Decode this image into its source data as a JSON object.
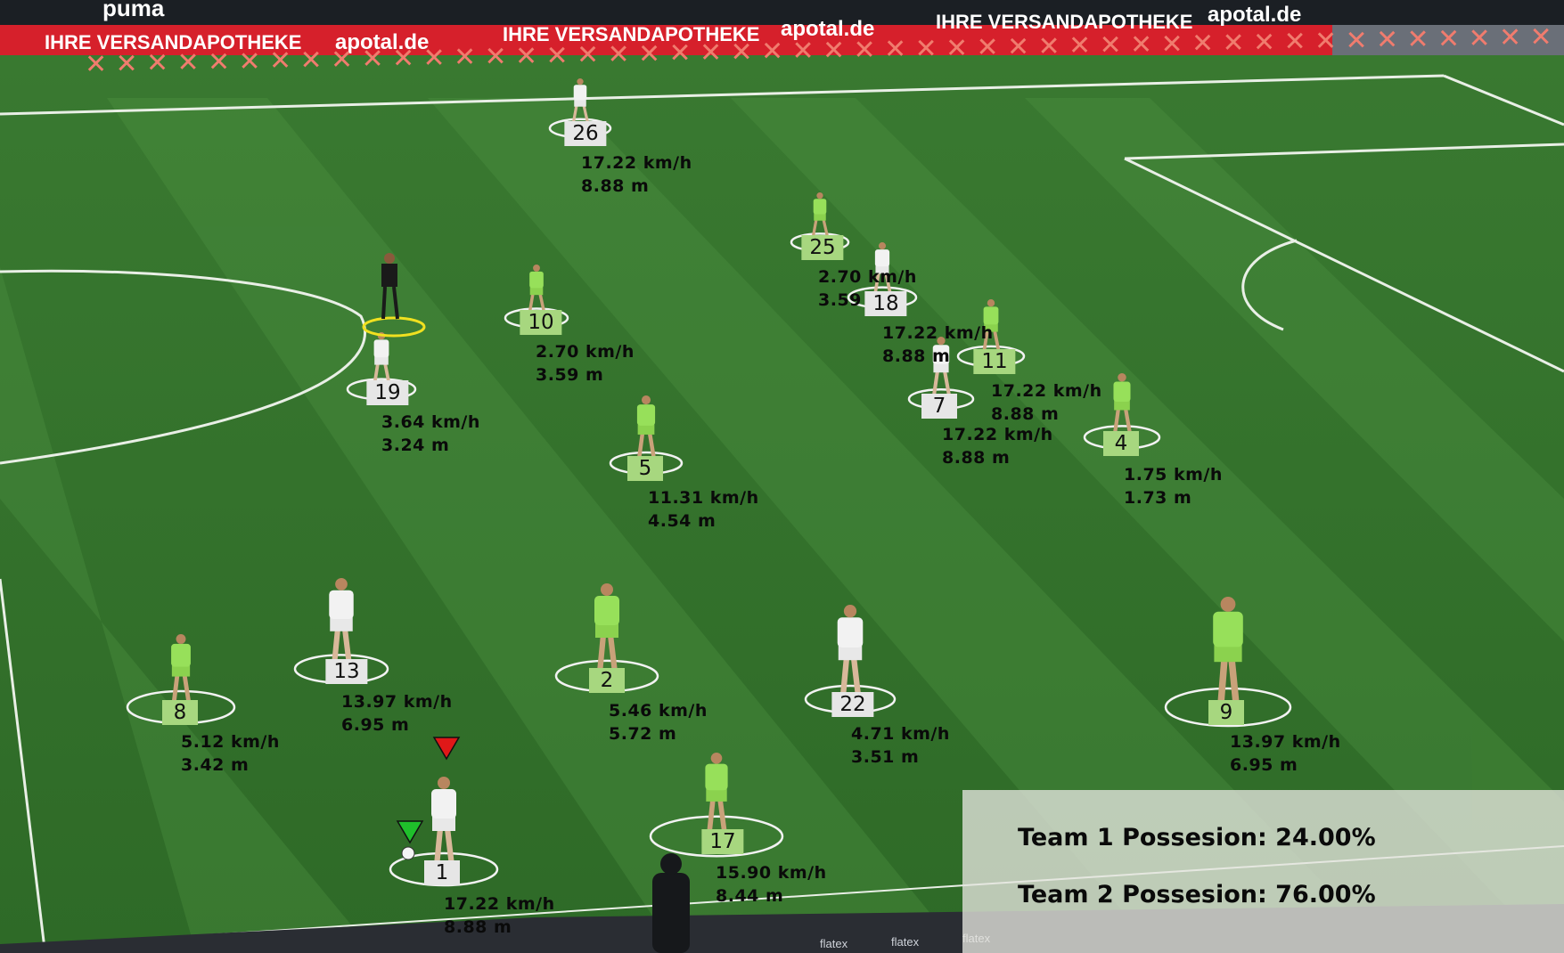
{
  "banner": {
    "top_left_text": "puma",
    "repeat_text_1": "IHRE VERSANDAPOTHEKE",
    "repeat_text_2": "apotal.de"
  },
  "colors": {
    "team_a_tag": "#a7d77f",
    "team_b_tag": "#e6e6e6",
    "ball_marker": "#1fbf2b",
    "ball_holder_marker": "#e01818",
    "referee_ring": "#f0e020"
  },
  "players": [
    {
      "id": "26",
      "team": "b",
      "speed": "17.22 km/h",
      "distance": "8.88 m"
    },
    {
      "id": "25",
      "team": "a",
      "speed": "2.70 km/h",
      "distance": "3.59 m"
    },
    {
      "id": "18",
      "team": "b",
      "speed": "17.22 km/h",
      "distance": "8.88 m"
    },
    {
      "id": "10",
      "team": "a",
      "speed": "2.70 km/h",
      "distance": "3.59 m"
    },
    {
      "id": "19",
      "team": "b",
      "speed": "3.64 km/h",
      "distance": "3.24 m"
    },
    {
      "id": "11",
      "team": "a",
      "speed": "17.22 km/h",
      "distance": "8.88 m"
    },
    {
      "id": "7",
      "team": "b",
      "speed": "17.22 km/h",
      "distance": "8.88 m"
    },
    {
      "id": "4",
      "team": "a",
      "speed": "1.75 km/h",
      "distance": "1.73 m"
    },
    {
      "id": "5",
      "team": "a",
      "speed": "11.31 km/h",
      "distance": "4.54 m"
    },
    {
      "id": "8",
      "team": "a",
      "speed": "5.12 km/h",
      "distance": "3.42 m"
    },
    {
      "id": "13",
      "team": "b",
      "speed": "13.97 km/h",
      "distance": "6.95 m"
    },
    {
      "id": "2",
      "team": "a",
      "speed": "5.46 km/h",
      "distance": "5.72 m"
    },
    {
      "id": "22",
      "team": "b",
      "speed": "4.71 km/h",
      "distance": "3.51 m"
    },
    {
      "id": "9",
      "team": "a",
      "speed": "13.97 km/h",
      "distance": "6.95 m"
    },
    {
      "id": "17",
      "team": "a",
      "speed": "15.90 km/h",
      "distance": "8.44 m"
    },
    {
      "id": "1",
      "team": "b",
      "speed": "17.22 km/h",
      "distance": "8.88 m"
    }
  ],
  "possession": {
    "team1": "Team 1 Possesion: 24.00%",
    "team2": "Team 2 Possesion: 76.00%"
  },
  "perimeter_bottom": {
    "sponsor": "flatex"
  }
}
